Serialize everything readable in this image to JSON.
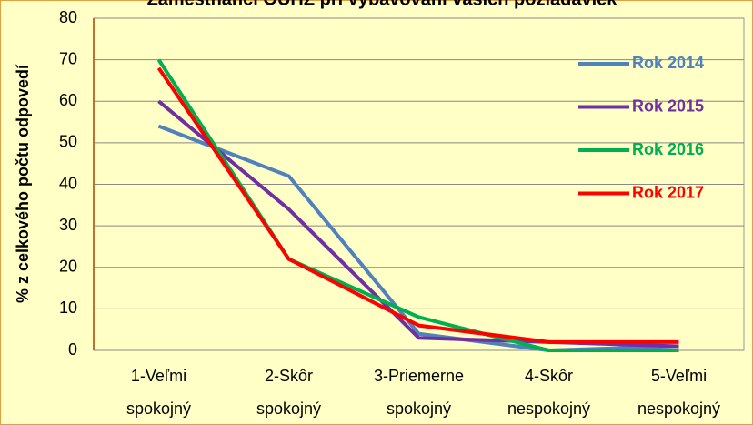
{
  "chart_data": {
    "type": "line",
    "title": "Zamestnanci OÚHZ pri vybavovaní vašich požiadaviek",
    "y_label": "% z celkového počtu odpovedí",
    "categories": [
      "1-Veľmi spokojný",
      "2-Skôr spokojný",
      "3-Priemerne spokojný",
      "4-Skôr nespokojný",
      "5-Veľmi nespokojný"
    ],
    "series": [
      {
        "name": "Rok 2014",
        "color": "#4f81bd",
        "values": [
          54,
          42,
          4,
          0,
          1
        ]
      },
      {
        "name": "Rok 2015",
        "color": "#7030a0",
        "values": [
          60,
          34,
          3,
          2,
          1
        ]
      },
      {
        "name": "Rok 2016",
        "color": "#00b050",
        "values": [
          70,
          22,
          8,
          0,
          0
        ]
      },
      {
        "name": "Rok 2017",
        "color": "#ff0000",
        "values": [
          68,
          22,
          6,
          2,
          2
        ]
      }
    ],
    "ylim": [
      0,
      80
    ],
    "yticks": [
      0,
      10,
      20,
      30,
      40,
      50,
      60,
      70,
      80
    ],
    "grid": true,
    "legend": "right"
  }
}
